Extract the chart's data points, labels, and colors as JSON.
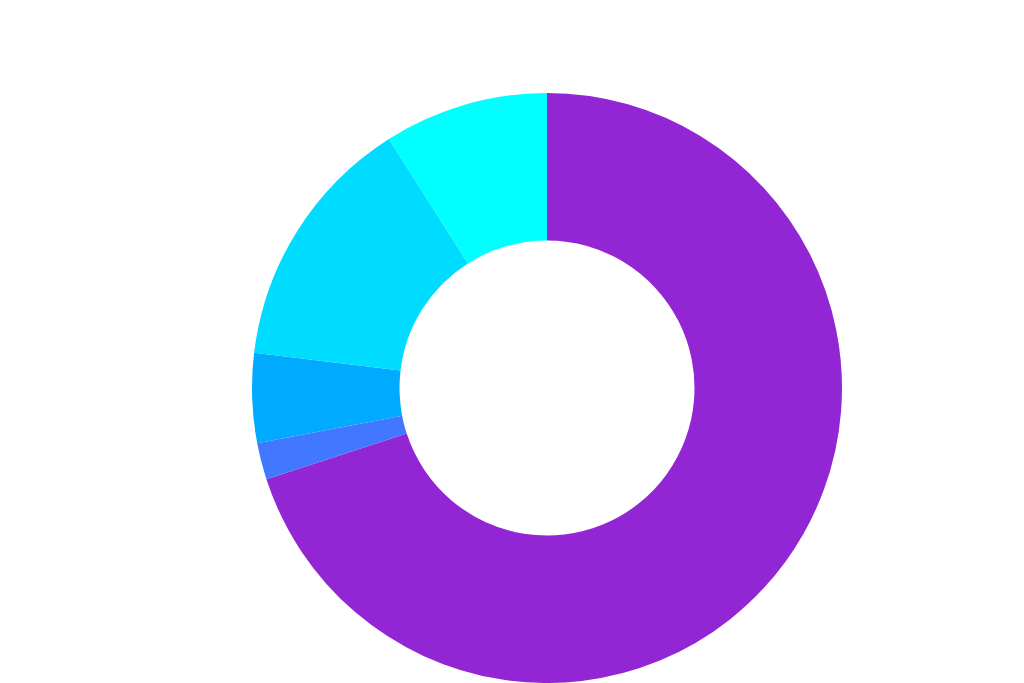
{
  "chart_data": {
    "type": "donut",
    "categories": [
      null,
      null,
      null,
      null,
      null
    ],
    "values": [
      70,
      2,
      4.9,
      14.1,
      9
    ],
    "colors": [
      "#9326d4",
      "#4178ff",
      "#00aaff",
      "#00dcff",
      "#00ffff"
    ],
    "legend": false
  }
}
